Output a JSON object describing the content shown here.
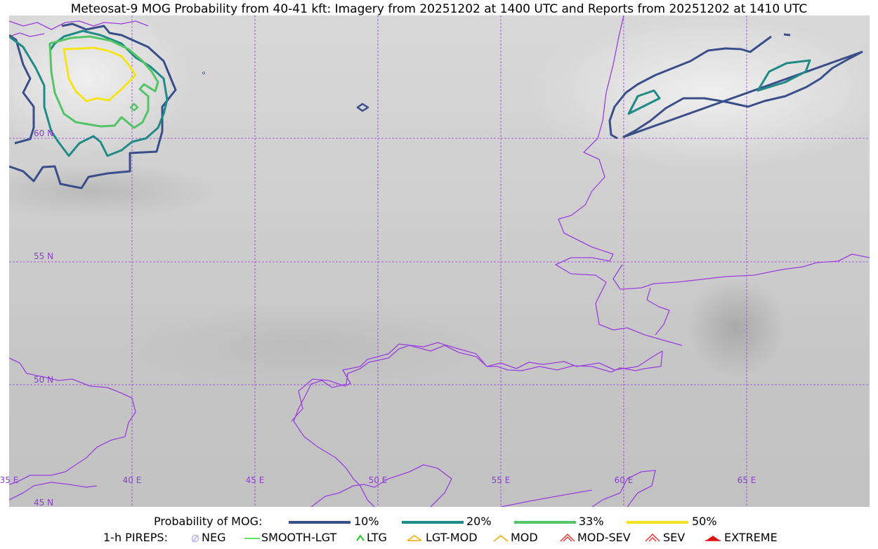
{
  "title": "Meteosat-9 MOG Probability from 40-41 kft: Imagery from 20251202 at 1400 UTC and Reports from 20251202 at 1410 UTC",
  "map": {
    "lat_labels": [
      "60 N",
      "55 N",
      "50 N",
      "45 N"
    ],
    "lon_labels": [
      "35 E",
      "40 E",
      "45 E",
      "50 E",
      "55 E",
      "60 E",
      "65 E"
    ],
    "colors": {
      "graticule": "#9a3fd6",
      "coastline": "#9b3fe0"
    }
  },
  "legend": {
    "probability": {
      "label": "Probability of MOG:",
      "items": [
        {
          "label": "10%",
          "color": "#3a4f8a"
        },
        {
          "label": "20%",
          "color": "#1f8a86"
        },
        {
          "label": "33%",
          "color": "#55c466"
        },
        {
          "label": "50%",
          "color": "#f5e31d"
        }
      ]
    },
    "pireps": {
      "label": "1-h PIREPS:",
      "items": [
        {
          "label": "NEG",
          "icon": "neg-icon",
          "color": "#b4b4f0"
        },
        {
          "label": "SMOOTH-LGT",
          "icon": "smooth-lgt-icon",
          "color": "#33dd33"
        },
        {
          "label": "LTG",
          "icon": "ltg-icon",
          "color": "#22cc22"
        },
        {
          "label": "LGT-MOD",
          "icon": "lgt-mod-icon",
          "color": "#f2a900"
        },
        {
          "label": "MOD",
          "icon": "mod-icon",
          "color": "#f2a900"
        },
        {
          "label": "MOD-SEV",
          "icon": "mod-sev-icon",
          "color": "#e83030"
        },
        {
          "label": "SEV",
          "icon": "sev-icon",
          "color": "#e83030"
        },
        {
          "label": "EXTREME",
          "icon": "extreme-icon",
          "color": "#dd1111"
        }
      ]
    }
  }
}
